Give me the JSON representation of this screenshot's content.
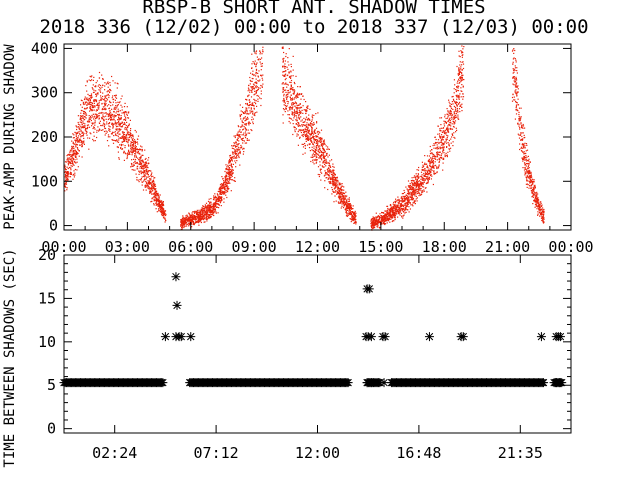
{
  "title_line1": "RBSP-B SHORT ANT. SHADOW TIMES",
  "title_line2": "2018 336 (12/02) 00:00 to 2018 337 (12/03) 00:00",
  "chart_data": [
    {
      "type": "scatter",
      "ylabel": "PEAK-AMP DURING SHADOW",
      "xlim": [
        0,
        24
      ],
      "ylim": [
        -10,
        410
      ],
      "xtick_labels": [
        "00:00",
        "03:00",
        "06:00",
        "09:00",
        "12:00",
        "15:00",
        "18:00",
        "21:00",
        "00:00"
      ],
      "ytick_labels": [
        "0",
        "100",
        "200",
        "300",
        "400"
      ],
      "color": "#e8220a",
      "series": [
        {
          "segments": [
            {
              "x": [
                0.0,
                0.5,
                1.0,
                1.5,
                2.0,
                2.5,
                3.0,
                3.5,
                4.0,
                4.4,
                4.8
              ],
              "y": [
                110,
                170,
                250,
                270,
                260,
                240,
                200,
                150,
                110,
                60,
                20
              ]
            },
            {
              "x": [
                5.5,
                6.0,
                6.5,
                7.0,
                7.5,
                8.0,
                8.5,
                9.0,
                9.4
              ],
              "y": [
                5,
                15,
                25,
                40,
                80,
                150,
                230,
                320,
                390
              ]
            },
            {
              "x": [
                10.3,
                10.8,
                11.3,
                11.8,
                12.3,
                12.8,
                13.3,
                13.8
              ],
              "y": [
                350,
                280,
                230,
                200,
                150,
                100,
                50,
                15
              ]
            },
            {
              "x": [
                14.5,
                15.0,
                15.5,
                16.0,
                16.5,
                17.0,
                17.5,
                18.0,
                18.5,
                18.9
              ],
              "y": [
                5,
                15,
                30,
                50,
                80,
                110,
                150,
                200,
                270,
                380
              ]
            },
            {
              "x": [
                21.2,
                21.5,
                21.8,
                22.1,
                22.4,
                22.7
              ],
              "y": [
                380,
                250,
                150,
                100,
                50,
                20
              ]
            }
          ]
        }
      ]
    },
    {
      "type": "scatter",
      "ylabel": "TIME BETWEEN SHADOWS (SEC)",
      "xlim": [
        0,
        24
      ],
      "ylim": [
        -0.5,
        20
      ],
      "xtick_labels": [
        "02:24",
        "07:12",
        "12:00",
        "16:48",
        "21:35"
      ],
      "ytick_labels": [
        "0",
        "5",
        "10",
        "15",
        "20"
      ],
      "color": "#000000",
      "baseline": {
        "y": 5.3,
        "runs": [
          [
            0.0,
            4.7
          ],
          [
            5.95,
            13.5
          ],
          [
            14.35,
            15.0
          ],
          [
            15.5,
            22.7
          ],
          [
            23.2,
            23.6
          ]
        ]
      },
      "points": [
        {
          "x": 4.8,
          "y": 10.6
        },
        {
          "x": 5.3,
          "y": 17.5
        },
        {
          "x": 5.35,
          "y": 14.2
        },
        {
          "x": 5.3,
          "y": 10.6
        },
        {
          "x": 5.45,
          "y": 10.6
        },
        {
          "x": 5.55,
          "y": 10.6
        },
        {
          "x": 6.0,
          "y": 10.6
        },
        {
          "x": 14.35,
          "y": 16.1
        },
        {
          "x": 14.45,
          "y": 16.1
        },
        {
          "x": 14.3,
          "y": 10.6
        },
        {
          "x": 14.4,
          "y": 10.6
        },
        {
          "x": 14.55,
          "y": 10.6
        },
        {
          "x": 15.1,
          "y": 10.6
        },
        {
          "x": 15.2,
          "y": 10.6
        },
        {
          "x": 17.3,
          "y": 10.6
        },
        {
          "x": 18.8,
          "y": 10.6
        },
        {
          "x": 18.9,
          "y": 10.6
        },
        {
          "x": 22.6,
          "y": 10.6
        },
        {
          "x": 23.3,
          "y": 10.6
        },
        {
          "x": 23.4,
          "y": 10.6
        },
        {
          "x": 23.5,
          "y": 10.6
        },
        {
          "x": 14.35,
          "y": 5.3
        },
        {
          "x": 14.55,
          "y": 5.3
        },
        {
          "x": 15.15,
          "y": 5.3
        },
        {
          "x": 23.3,
          "y": 5.3
        },
        {
          "x": 23.45,
          "y": 5.3
        }
      ]
    }
  ]
}
